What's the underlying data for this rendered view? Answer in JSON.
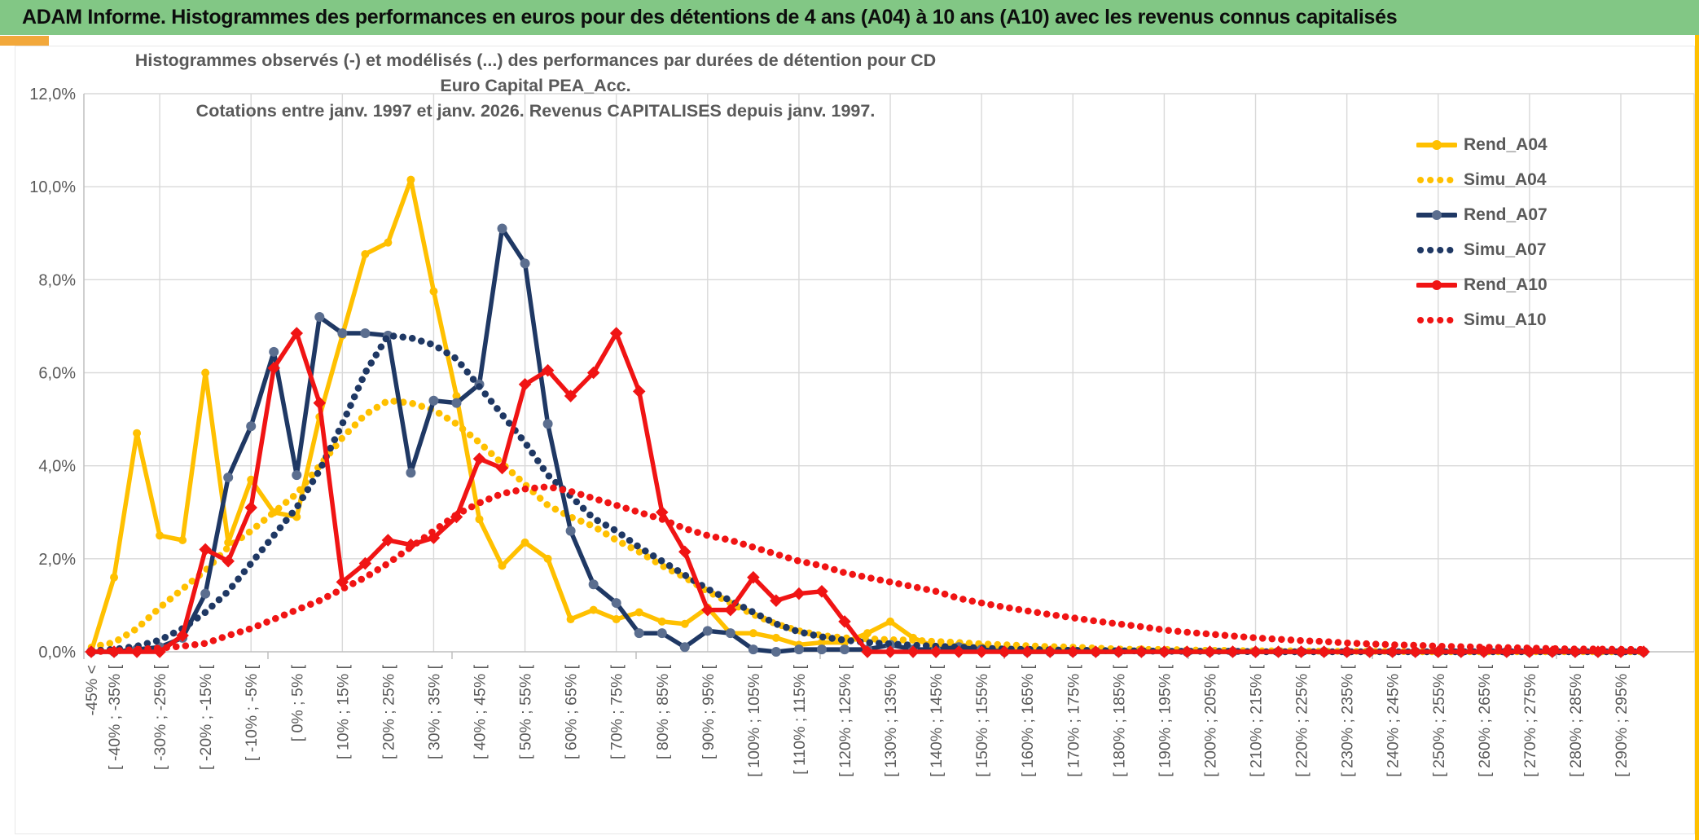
{
  "header": {
    "title": "ADAM Informe. Histogrammes des performances en euros pour des détentions de 4 ans (A04) à 10 ans (A10) avec les revenus connus capitalisés"
  },
  "colors": {
    "header_bg": "#82C785",
    "accent_gold": "#F2A83B",
    "strip_gold": "#FFC000",
    "grid": "#D9D9D9",
    "axis": "#BFBFBF",
    "text": "#595959",
    "gold": "#FFC000",
    "navy": "#1F3864",
    "navy_marker": "#5B6E8F",
    "red": "#F01414"
  },
  "chart_data": {
    "type": "line",
    "title_lines": [
      "Histogrammes observés (-) et modélisés (...) des performances par durées de détention pour CD Euro Capital PEA_Acc.",
      "Cotations entre janv. 1997 et janv. 2026. Revenus CAPITALISES depuis janv. 1997."
    ],
    "ylabel": "",
    "xlabel": "",
    "ylim": [
      0,
      12
    ],
    "grid": true,
    "legend_position": "right",
    "y_ticks": [
      "0,0%",
      "2,0%",
      "4,0%",
      "6,0%",
      "8,0%",
      "10,0%",
      "12,0%"
    ],
    "categories": [
      "-45% <",
      "[ -40% ; -35% [",
      "",
      "[ -30% ; -25% [",
      "",
      "[ -20% ; -15% [",
      "",
      "[ -10% ; -5% [",
      "",
      "[ 0% ; 5% [",
      "",
      "[ 10% ; 15% [",
      "",
      "[ 20% ; 25% [",
      "",
      "[ 30% ; 35% [",
      "",
      "[ 40% ; 45% [",
      "",
      "[ 50% ; 55% [",
      "",
      "[ 60% ; 65% [",
      "",
      "[ 70% ; 75% [",
      "",
      "[ 80% ; 85% [",
      "",
      "[ 90% ; 95% [",
      "",
      "[ 100% ; 105% [",
      "",
      "[ 110% ; 115% [",
      "",
      "[ 120% ; 125% [",
      "",
      "[ 130% ; 135% [",
      "",
      "[ 140% ; 145% [",
      "",
      "[ 150% ; 155% [",
      "",
      "[ 160% ; 165% [",
      "",
      "[ 170% ; 175% [",
      "",
      "[ 180% ; 185% [",
      "",
      "[ 190% ; 195% [",
      "",
      "[ 200% ; 205% [",
      "",
      "[ 210% ; 215% [",
      "",
      "[ 220% ; 225% [",
      "",
      "[ 230% ; 235% [",
      "",
      "[ 240% ; 245% [",
      "",
      "[ 250% ; 255% [",
      "",
      "[ 260% ; 265% [",
      "",
      "[ 270% ; 275% [",
      "",
      "[ 280% ; 285% [",
      "",
      "[ 290% ; 295% [",
      ""
    ],
    "series": [
      {
        "name": "Rend_A04",
        "style": "solid",
        "color": "#FFC000",
        "marker": "circle",
        "marker_color": "#FFC000",
        "marker_r": 5,
        "values": [
          0,
          1.6,
          4.7,
          2.5,
          2.4,
          6.0,
          2.35,
          3.7,
          3.0,
          2.9,
          5.05,
          6.8,
          8.55,
          8.8,
          10.15,
          7.75,
          5.5,
          2.85,
          1.85,
          2.35,
          2.0,
          0.7,
          0.9,
          0.7,
          0.85,
          0.65,
          0.6,
          0.95,
          0.4,
          0.4,
          0.3,
          0.15,
          0.2,
          0.2,
          0.4,
          0.65,
          0.3,
          0.1,
          0.15,
          0.1,
          0.05,
          0.05,
          0,
          0.05,
          0,
          0,
          0.05,
          0,
          0,
          0,
          0,
          0,
          0,
          0,
          0,
          0,
          0,
          0,
          0,
          0,
          0,
          0,
          0,
          0,
          0,
          0,
          0,
          0,
          0
        ]
      },
      {
        "name": "Simu_A04",
        "style": "dotted",
        "color": "#FFC000",
        "values": [
          0.1,
          0.2,
          0.5,
          0.95,
          1.35,
          1.75,
          2.25,
          2.6,
          3.0,
          3.4,
          4.0,
          4.6,
          5.1,
          5.4,
          5.35,
          5.2,
          4.9,
          4.5,
          4.05,
          3.6,
          3.15,
          2.9,
          2.7,
          2.4,
          2.15,
          1.85,
          1.6,
          1.3,
          1.05,
          0.8,
          0.6,
          0.45,
          0.35,
          0.3,
          0.28,
          0.26,
          0.25,
          0.22,
          0.2,
          0.17,
          0.15,
          0.13,
          0.11,
          0.1,
          0.08,
          0.06,
          0.05,
          0.05,
          0.04,
          0.03,
          0.03,
          0.02,
          0.02,
          0.02,
          0.01,
          0.01,
          0.01,
          0.01,
          0,
          0,
          0,
          0,
          0,
          0,
          0,
          0,
          0,
          0,
          0
        ]
      },
      {
        "name": "Rend_A07",
        "style": "solid",
        "color": "#1F3864",
        "marker": "circle",
        "marker_color": "#5B6E8F",
        "marker_r": 6,
        "values": [
          0,
          0,
          0.05,
          0.1,
          0.3,
          1.25,
          3.75,
          4.85,
          6.45,
          3.8,
          7.2,
          6.85,
          6.85,
          6.8,
          3.85,
          5.4,
          5.35,
          5.75,
          9.1,
          8.35,
          4.9,
          2.6,
          1.45,
          1.05,
          0.4,
          0.4,
          0.1,
          0.45,
          0.4,
          0.05,
          0,
          0.05,
          0.05,
          0.05,
          0.05,
          0.15,
          0.05,
          0.05,
          0.1,
          0.05,
          0,
          0,
          0,
          0,
          0,
          0,
          0,
          0,
          0,
          0,
          0,
          0,
          0,
          0,
          0,
          0,
          0,
          0,
          0,
          0,
          0,
          0,
          0,
          0,
          0,
          0,
          0,
          0,
          0
        ]
      },
      {
        "name": "Simu_A07",
        "style": "dotted",
        "color": "#1F3864",
        "values": [
          0.02,
          0.05,
          0.12,
          0.25,
          0.5,
          0.85,
          1.3,
          1.9,
          2.5,
          3.1,
          3.9,
          4.9,
          6.0,
          6.8,
          6.75,
          6.6,
          6.3,
          5.7,
          5.1,
          4.5,
          3.8,
          3.35,
          2.87,
          2.6,
          2.25,
          1.95,
          1.65,
          1.35,
          1.1,
          0.85,
          0.6,
          0.43,
          0.32,
          0.25,
          0.2,
          0.17,
          0.14,
          0.12,
          0.1,
          0.08,
          0.06,
          0.05,
          0.04,
          0.03,
          0.03,
          0.02,
          0.02,
          0.01,
          0.01,
          0.01,
          0.01,
          0,
          0,
          0,
          0,
          0,
          0,
          0,
          0,
          0,
          0,
          0,
          0,
          0,
          0,
          0,
          0,
          0,
          0
        ]
      },
      {
        "name": "Rend_A10",
        "style": "solid",
        "color": "#F01414",
        "marker": "diamond",
        "marker_color": "#F01414",
        "marker_r": 7,
        "values": [
          0,
          0,
          0,
          0,
          0.35,
          2.2,
          1.95,
          3.1,
          6.1,
          6.85,
          5.35,
          1.5,
          1.9,
          2.4,
          2.3,
          2.45,
          2.9,
          4.15,
          3.95,
          5.75,
          6.05,
          5.5,
          6.0,
          6.85,
          5.6,
          3.0,
          2.15,
          0.9,
          0.9,
          1.6,
          1.1,
          1.25,
          1.3,
          0.65,
          0,
          0,
          0,
          0,
          0,
          0,
          0,
          0,
          0,
          0,
          0,
          0,
          0,
          0,
          0,
          0,
          0,
          0,
          0,
          0,
          0,
          0,
          0,
          0,
          0,
          0,
          0,
          0,
          0,
          0,
          0,
          0,
          0,
          0,
          0
        ]
      },
      {
        "name": "Simu_A10",
        "style": "dotted",
        "color": "#F01414",
        "values": [
          0,
          0.02,
          0.05,
          0.08,
          0.12,
          0.18,
          0.35,
          0.5,
          0.7,
          0.9,
          1.1,
          1.35,
          1.6,
          1.9,
          2.25,
          2.6,
          2.95,
          3.2,
          3.4,
          3.5,
          3.55,
          3.45,
          3.3,
          3.15,
          3.0,
          2.85,
          2.65,
          2.5,
          2.4,
          2.25,
          2.1,
          1.95,
          1.85,
          1.7,
          1.6,
          1.5,
          1.4,
          1.3,
          1.15,
          1.05,
          0.96,
          0.88,
          0.8,
          0.73,
          0.66,
          0.6,
          0.54,
          0.47,
          0.42,
          0.38,
          0.34,
          0.3,
          0.27,
          0.24,
          0.22,
          0.19,
          0.17,
          0.15,
          0.14,
          0.12,
          0.11,
          0.1,
          0.09,
          0.08,
          0.07,
          0.06,
          0.06,
          0.05,
          0.05
        ]
      }
    ]
  }
}
